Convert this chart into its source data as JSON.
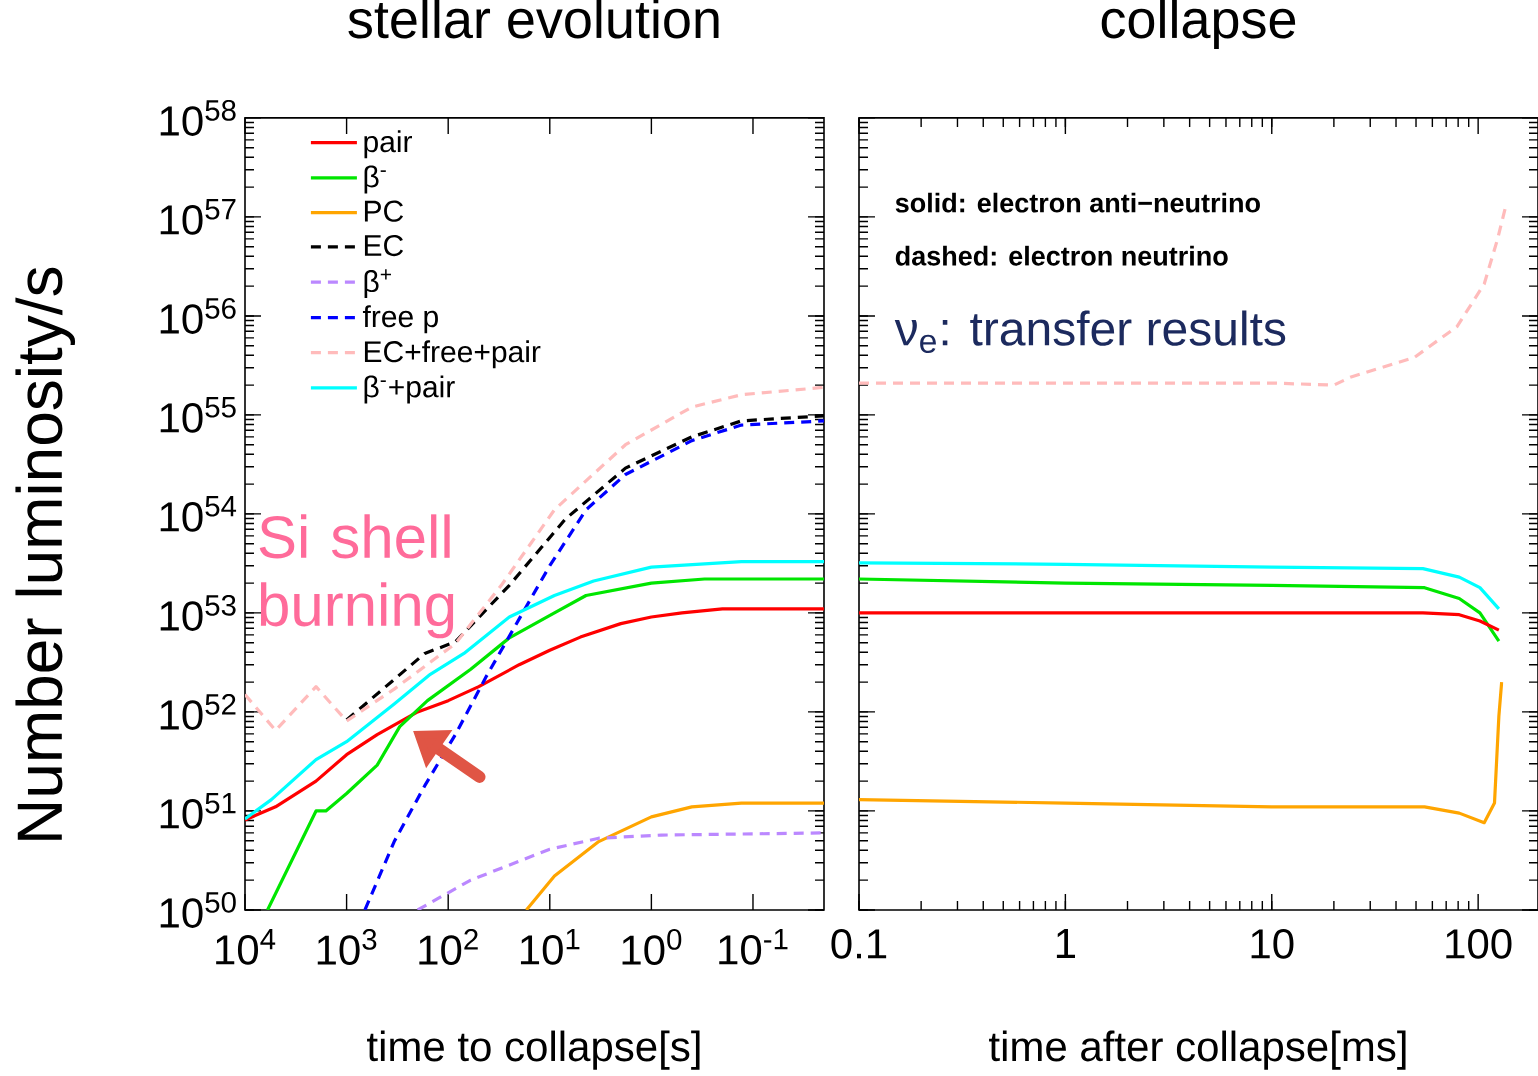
{
  "chart_data": [
    {
      "type": "line",
      "title": "stellar evolution",
      "xlabel": "time to collapse[s]",
      "ylabel": "Number luminosity/s",
      "log": "xy",
      "legend": "top left",
      "xlim": [
        10000,
        0.02
      ],
      "ylim": [
        1e+50,
        1e+58
      ],
      "xticks": [
        {
          "value": 10000,
          "label": "10$^{4}$"
        },
        {
          "value": 1000,
          "label": "10$^{3}$"
        },
        {
          "value": 100,
          "label": "10$^{2}$"
        },
        {
          "value": 10,
          "label": "10$^{1}$"
        },
        {
          "value": 1,
          "label": "10$^{0}$"
        },
        {
          "value": 0.1,
          "label": "10$^{-1}$"
        }
      ],
      "yticks": [
        {
          "value": 1e+50,
          "label": "10$^{50}$"
        },
        {
          "value": 1e+51,
          "label": "10$^{51}$"
        },
        {
          "value": 1e+52,
          "label": "10$^{52}$"
        },
        {
          "value": 1e+53,
          "label": "10$^{53}$"
        },
        {
          "value": 1e+54,
          "label": "10$^{54}$"
        },
        {
          "value": 1e+55,
          "label": "10$^{55}$"
        },
        {
          "value": 1e+56,
          "label": "10$^{56}$"
        },
        {
          "value": 1e+57,
          "label": "10$^{57}$"
        },
        {
          "value": 1e+58,
          "label": "10$^{58}$"
        }
      ],
      "annotations": [
        "Si shell burning"
      ],
      "series": [
        {
          "name": "pair",
          "color": "#ff0000",
          "line_style": "solid",
          "x": [
            10000,
            5000,
            2000,
            1000,
            500,
            200,
            100,
            50,
            20,
            10,
            5,
            2,
            1,
            0.5,
            0.2,
            0.1,
            0.05,
            0.02
          ],
          "values": [
            8.1e+50,
            1.1e+51,
            2e+51,
            3.7e+51,
            5.9e+51,
            1e+52,
            1.3e+52,
            1.8e+52,
            3e+52,
            4.2e+52,
            5.7e+52,
            7.8e+52,
            9.1e+52,
            1e+53,
            1.1e+53,
            1.1e+53,
            1.1e+53,
            1.1e+53
          ]
        },
        {
          "name": "β$^{-}$",
          "color": "#00e600",
          "line_style": "solid",
          "x": [
            6000,
            2000,
            1600,
            1000,
            500,
            300,
            160,
            60,
            25,
            9,
            4.4,
            1,
            0.3,
            0.02
          ],
          "values": [
            1e+50,
            1e+51,
            1e+51,
            1.5e+51,
            2.9e+51,
            7.1e+51,
            1.3e+52,
            2.7e+52,
            5.6e+52,
            1e+53,
            1.5e+53,
            2e+53,
            2.2e+53,
            2.2e+53
          ]
        },
        {
          "name": "PC",
          "color": "#ffa500",
          "line_style": "solid",
          "x": [
            17,
            9,
            3.3,
            1,
            0.4,
            0.13,
            0.02
          ],
          "values": [
            1e+50,
            2.2e+50,
            4.9e+50,
            8.7e+50,
            1.1e+51,
            1.2e+51,
            1.2e+51
          ]
        },
        {
          "name": "EC",
          "color": "#000000",
          "line_style": "dashed",
          "x": [
            1000,
            170,
            85,
            25,
            7,
            1.8,
            0.4,
            0.13,
            0.02
          ],
          "values": [
            8.3e+51,
            3.9e+52,
            5.1e+52,
            1.9e+53,
            8.9e+53,
            2.9e+54,
            6e+54,
            8.7e+54,
            9.8e+54
          ]
        },
        {
          "name": "β$^{+}$",
          "color": "#bb88ff",
          "line_style": "dashed",
          "x": [
            200,
            60,
            10,
            3.3,
            0.8,
            0.02
          ],
          "values": [
            1e+50,
            2e+50,
            4.1e+50,
            5.3e+50,
            5.7e+50,
            6e+50
          ]
        },
        {
          "name": "free p",
          "color": "#0000ff",
          "line_style": "dashed",
          "x": [
            660,
            340,
            170,
            85,
            42,
            20,
            10,
            4.4,
            1.8,
            0.4,
            0.13,
            0.02
          ],
          "values": [
            1e+50,
            4.9e+50,
            1.8e+51,
            5.9e+51,
            2.3e+52,
            8.7e+52,
            3e+53,
            1.1e+54,
            2.5e+54,
            5.5e+54,
            7.9e+54,
            8.7e+54
          ]
        },
        {
          "name": "EC+free+pair",
          "color": "#ffbbbb",
          "line_style": "dashed",
          "x": [
            10000,
            5000,
            2000,
            1000,
            340,
            85,
            30,
            9,
            1.8,
            0.4,
            0.13,
            0.02
          ],
          "values": [
            1.5e+52,
            6.5e+51,
            1.8e+52,
            8.1e+51,
            1.7e+52,
            4.9e+52,
            1.9e+53,
            1.1e+54,
            5e+54,
            1.2e+55,
            1.6e+55,
            1.9e+55
          ]
        },
        {
          "name": "β$^{-}$+pair",
          "color": "#00ffff",
          "line_style": "solid",
          "x": [
            10000,
            5500,
            2000,
            1000,
            340,
            150,
            70,
            25,
            9,
            3.7,
            1,
            0.13,
            0.02
          ],
          "values": [
            8.3e+50,
            1.3e+51,
            3.3e+51,
            5e+51,
            1.2e+52,
            2.4e+52,
            3.9e+52,
            9.1e+52,
            1.5e+53,
            2.1e+53,
            2.9e+53,
            3.3e+53,
            3.3e+53
          ]
        }
      ]
    },
    {
      "type": "line",
      "title": "collapse",
      "xlabel": "time after collapse[ms]",
      "log": "xy",
      "tick_labels": "x",
      "xlim": [
        0.1,
        195
      ],
      "ylim": [
        1e+50,
        1e+58
      ],
      "xticks": [
        {
          "value": 0.1,
          "label": "0.1"
        },
        1,
        10,
        100
      ],
      "yticks": [
        {
          "value": 1e+50,
          "label": null
        },
        {
          "value": 1e+51,
          "label": null
        },
        {
          "value": 1e+52,
          "label": null
        },
        {
          "value": 1e+53,
          "label": null
        },
        {
          "value": 1e+54,
          "label": null
        },
        {
          "value": 1e+55,
          "label": null
        },
        {
          "value": 1e+56,
          "label": null
        },
        {
          "value": 1e+57,
          "label": null
        },
        {
          "value": 1e+58,
          "label": null
        }
      ],
      "annotations": [
        "solid: electron anti−neutrino",
        "dashed: electron neutrino",
        "ν$_{e}$: transfer results"
      ],
      "series": [
        {
          "color": "#ffbbbb",
          "line_style": "dashed",
          "x": [
            0.1,
            1,
            10,
            20,
            24,
            49,
            79,
            107,
            124,
            135
          ],
          "values": [
            2.1e+55,
            2.1e+55,
            2.1e+55,
            2e+55,
            2.4e+55,
            3.8e+55,
            7.8e+55,
            2.1e+56,
            5.9e+56,
            1.2e+57
          ]
        },
        {
          "color": "#00ffff",
          "line_style": "solid",
          "x": [
            0.1,
            1,
            10,
            54,
            81,
            102,
            126
          ],
          "values": [
            3.2e+53,
            3.1e+53,
            2.9e+53,
            2.8e+53,
            2.3e+53,
            1.8e+53,
            1.1e+53
          ]
        },
        {
          "color": "#00e600",
          "line_style": "solid",
          "x": [
            0.1,
            1,
            10,
            55,
            81,
            102,
            126
          ],
          "values": [
            2.2e+53,
            2e+53,
            1.9e+53,
            1.8e+53,
            1.4e+53,
            1e+53,
            5.2e+52
          ]
        },
        {
          "color": "#ff0000",
          "line_style": "solid",
          "x": [
            0.1,
            1,
            10,
            54,
            81,
            102,
            126
          ],
          "values": [
            1e+53,
            1e+53,
            1e+53,
            1e+53,
            9.6e+52,
            8.3e+52,
            6.7e+52
          ]
        },
        {
          "color": "#ffa500",
          "line_style": "solid",
          "x": [
            0.1,
            1,
            10,
            55,
            81,
            107,
            120,
            126,
            130
          ],
          "values": [
            1.3e+51,
            1.2e+51,
            1.1e+51,
            1.1e+51,
            9.5e+50,
            7.6e+50,
            1.2e+51,
            9e+51,
            2e+52
          ]
        }
      ]
    }
  ]
}
